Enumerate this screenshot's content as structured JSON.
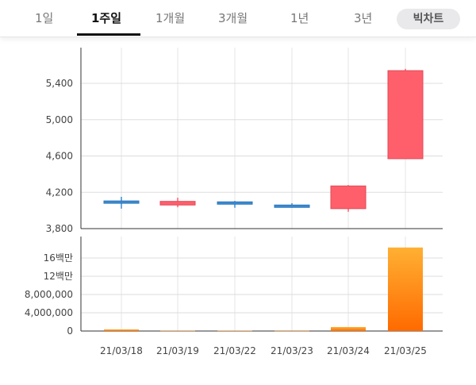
{
  "tabs": [
    {
      "label": "1일"
    },
    {
      "label": "1주일"
    },
    {
      "label": "1개월"
    },
    {
      "label": "3개월"
    },
    {
      "label": "1년"
    },
    {
      "label": "3년"
    }
  ],
  "big_chart_label": "빅차트",
  "colors": {
    "up": "#ff5f6b",
    "down": "#3a8ad0",
    "volume_top": "#ffb033",
    "volume_bottom": "#ff6a00"
  },
  "chart_data": [
    {
      "type": "candlestick",
      "categories": [
        "21/03/18",
        "21/03/19",
        "21/03/22",
        "21/03/23",
        "21/03/24",
        "21/03/25"
      ],
      "ylim": [
        3800,
        5600
      ],
      "yticks": [
        3800,
        4200,
        4600,
        5000,
        5400
      ],
      "ytick_labels": [
        "3,800",
        "4,200",
        "4,600",
        "5,000",
        "5,400"
      ],
      "ohlc": [
        [
          4105,
          4150,
          4020,
          4085
        ],
        [
          4060,
          4140,
          4035,
          4100
        ],
        [
          4095,
          4105,
          4030,
          4070
        ],
        [
          4060,
          4080,
          4030,
          4035
        ],
        [
          4020,
          4280,
          3985,
          4270
        ],
        [
          4570,
          5560,
          4570,
          5540
        ]
      ]
    },
    {
      "type": "bar",
      "categories": [
        "21/03/18",
        "21/03/19",
        "21/03/22",
        "21/03/23",
        "21/03/24",
        "21/03/25"
      ],
      "ylim": [
        0,
        20000000
      ],
      "yticks": [
        0,
        4000000,
        8000000,
        12000000,
        16000000
      ],
      "ytick_labels": [
        "0",
        "4,000,000",
        "8,000,000",
        "12백만",
        "16백만"
      ],
      "values": [
        350000,
        50000,
        60000,
        40000,
        870000,
        18300000
      ]
    }
  ]
}
